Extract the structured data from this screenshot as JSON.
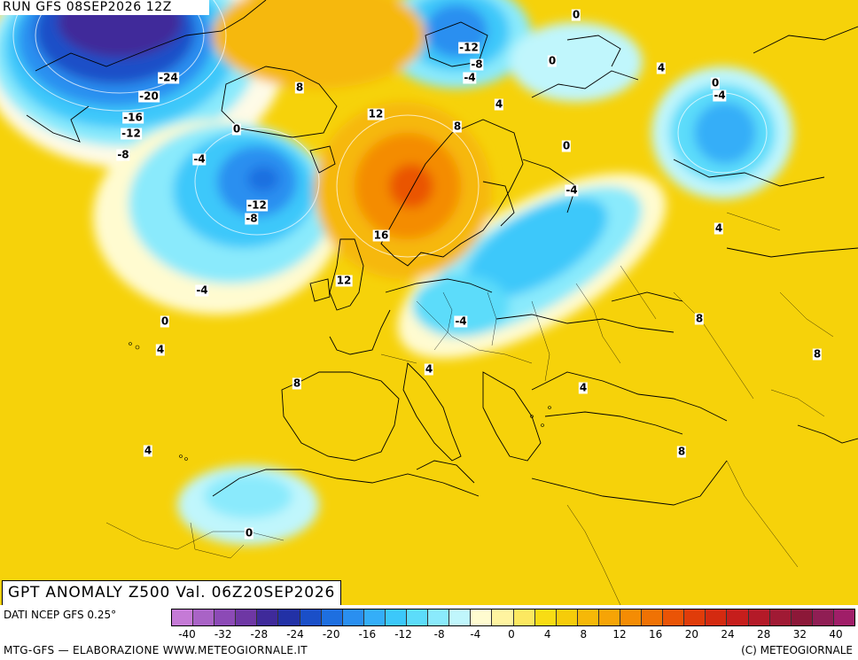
{
  "header": {
    "run_title": "RUN GFS 08SEP2026 12Z"
  },
  "map": {
    "title": "GPT ANOMALY Z500 Val. 06Z20SEP2026",
    "colors": {
      "sea": "#f6d20a",
      "land": "#f8dc14",
      "coast": "#000000"
    },
    "anomaly_centers": [
      {
        "name": "greenland-low",
        "value": -32
      },
      {
        "name": "iceland-low",
        "value": -16
      },
      {
        "name": "svalbard-low",
        "value": -16
      },
      {
        "name": "ural-low",
        "value": -12
      },
      {
        "name": "baltic-low",
        "value": -8
      },
      {
        "name": "scandinavia-high",
        "value": 20
      },
      {
        "name": "iberia-africa-low",
        "value": -4
      }
    ],
    "contour_labels": [
      {
        "text": "-24"
      },
      {
        "text": "-20"
      },
      {
        "text": "-16"
      },
      {
        "text": "-12"
      },
      {
        "text": "-8"
      },
      {
        "text": "-4"
      },
      {
        "text": "0"
      },
      {
        "text": "8"
      },
      {
        "text": "-12"
      },
      {
        "text": "-8"
      },
      {
        "text": "-4"
      },
      {
        "text": "12"
      },
      {
        "text": "8"
      },
      {
        "text": "4"
      },
      {
        "text": "0"
      },
      {
        "text": "0"
      },
      {
        "text": "4"
      },
      {
        "text": "0"
      },
      {
        "text": "-4"
      },
      {
        "text": "0"
      },
      {
        "text": "-4"
      },
      {
        "text": "16"
      },
      {
        "text": "12"
      },
      {
        "text": "-4"
      },
      {
        "text": "0"
      },
      {
        "text": "4"
      },
      {
        "text": "-4"
      },
      {
        "text": "4"
      },
      {
        "text": "8"
      },
      {
        "text": "8"
      },
      {
        "text": "8"
      },
      {
        "text": "4"
      },
      {
        "text": "4"
      },
      {
        "text": "0"
      },
      {
        "text": "8"
      },
      {
        "text": "4"
      },
      {
        "text": "-12"
      },
      {
        "text": "-8"
      }
    ]
  },
  "legend": {
    "data_source": "DATI NCEP GFS 0.25°",
    "credit": "MTG-GFS — ELABORAZIONE WWW.METEOGIORNALE.IT",
    "copyright": "(C) METEOGIORNALE",
    "tick_labels": [
      "-40",
      "-32",
      "-28",
      "-24",
      "-20",
      "-16",
      "-12",
      "-8",
      "-4",
      "0",
      "4",
      "8",
      "12",
      "16",
      "20",
      "24",
      "28",
      "32",
      "40"
    ],
    "scale_colors": [
      "#c57ad6",
      "#a963c6",
      "#8c4ab6",
      "#6e37a4",
      "#3f2a9a",
      "#2231a6",
      "#1a4fc8",
      "#1e6fe0",
      "#2a8ff0",
      "#34aef8",
      "#3cc8fa",
      "#5cdcfa",
      "#8aeafc",
      "#c0f6fc",
      "#fffbd0",
      "#fff4a0",
      "#fce860",
      "#f8dc14",
      "#f6cc0a",
      "#f6b808",
      "#f6a406",
      "#f48c04",
      "#f07204",
      "#ea5406",
      "#e03c0a",
      "#d42a10",
      "#c61e1c",
      "#b41a28",
      "#a01a34",
      "#8c1838",
      "#901e54",
      "#a01e68"
    ]
  }
}
